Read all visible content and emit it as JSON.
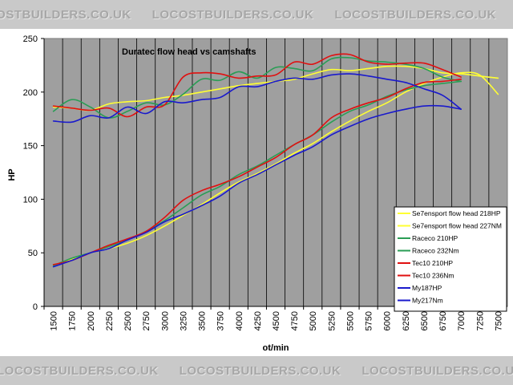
{
  "watermark": "LOCOSTBUILDERS.CO.UK",
  "chart_data": {
    "type": "line",
    "title": "Duratec  flow head vs camshafts",
    "xlabel": "ot/min",
    "ylabel": "HP",
    "ylim": [
      0,
      250
    ],
    "yticks": [
      0,
      50,
      100,
      150,
      200,
      250
    ],
    "xlim": [
      1500,
      7500
    ],
    "xticks": [
      1500,
      1750,
      2000,
      2250,
      2500,
      2750,
      3000,
      3250,
      3500,
      3750,
      4000,
      4250,
      4500,
      4750,
      5000,
      5250,
      5500,
      5750,
      6000,
      6250,
      6500,
      6750,
      7000,
      7250,
      7500
    ],
    "grid": "vertical",
    "legend_position": "right",
    "series": [
      {
        "name": "Se7ensport flow head 218HP",
        "color": "#ffff33",
        "x": [
          1500,
          1750,
          2000,
          2250,
          2500,
          2750,
          3000,
          3250,
          3500,
          3750,
          4000,
          4250,
          4500,
          4750,
          5000,
          5250,
          5500,
          5750,
          6000,
          6250,
          6500,
          6750,
          7000,
          7250,
          7500
        ],
        "values": [
          186,
          185,
          183,
          189,
          191,
          192,
          195,
          197,
          200,
          203,
          206,
          208,
          210,
          212,
          217,
          221,
          220,
          222,
          224,
          224,
          222,
          218,
          217,
          215,
          213
        ]
      },
      {
        "name": "Se7ensport flow head 227NM",
        "color": "#ffff33",
        "x": [
          1500,
          1750,
          2000,
          2250,
          2500,
          2750,
          3000,
          3250,
          3500,
          3750,
          4000,
          4250,
          4500,
          4750,
          5000,
          5250,
          5500,
          5750,
          6000,
          6250,
          6500,
          6750,
          7000,
          7250,
          7500
        ],
        "values": [
          38,
          44,
          50,
          54,
          59,
          66,
          75,
          85,
          95,
          106,
          116,
          124,
          133,
          143,
          152,
          163,
          173,
          182,
          190,
          200,
          208,
          214,
          218,
          216,
          198
        ]
      },
      {
        "name": "Raceco 210HP",
        "color": "#2a9d55",
        "x": [
          1500,
          1750,
          2000,
          2250,
          2500,
          2750,
          3000,
          3250,
          3500,
          3750,
          4000,
          4250,
          4500,
          4750,
          5000,
          5250,
          5500,
          5750,
          6000,
          6250,
          6500,
          6750,
          7000
        ],
        "values": [
          182,
          193,
          186,
          176,
          182,
          190,
          188,
          198,
          212,
          211,
          219,
          213,
          223,
          222,
          220,
          231,
          232,
          229,
          228,
          226,
          222,
          214,
          210
        ]
      },
      {
        "name": "Raceco 232Nm",
        "color": "#2a9d55",
        "x": [
          1500,
          1750,
          2000,
          2250,
          2500,
          2750,
          3000,
          3250,
          3500,
          3750,
          4000,
          4250,
          4500,
          4750,
          5000,
          5250,
          5500,
          5750,
          6000,
          6250,
          6500,
          6750,
          7000
        ],
        "values": [
          38,
          45,
          50,
          56,
          62,
          70,
          80,
          92,
          104,
          112,
          123,
          131,
          141,
          151,
          160,
          172,
          182,
          188,
          196,
          202,
          206,
          208,
          210
        ]
      },
      {
        "name": "Tec10 210HP",
        "color": "#e01010",
        "x": [
          1500,
          1750,
          2000,
          2250,
          2500,
          2750,
          3000,
          3250,
          3500,
          3750,
          4000,
          4250,
          4500,
          4750,
          5000,
          5250,
          5500,
          5750,
          6000,
          6250,
          6500,
          6750,
          7000
        ],
        "values": [
          187,
          185,
          183,
          185,
          177,
          186,
          188,
          214,
          218,
          217,
          213,
          215,
          216,
          228,
          226,
          234,
          235,
          228,
          226,
          227,
          227,
          221,
          214
        ]
      },
      {
        "name": "Tec10 236Nm",
        "color": "#e01010",
        "x": [
          1500,
          1750,
          2000,
          2250,
          2500,
          2750,
          3000,
          3250,
          3500,
          3750,
          4000,
          4250,
          4500,
          4750,
          5000,
          5250,
          5500,
          5750,
          6000,
          6250,
          6500,
          6750,
          7000
        ],
        "values": [
          39,
          43,
          50,
          57,
          63,
          70,
          83,
          99,
          108,
          114,
          121,
          130,
          139,
          151,
          160,
          176,
          184,
          190,
          195,
          203,
          209,
          210,
          212
        ]
      },
      {
        "name": "My187HP",
        "color": "#1a1acc",
        "x": [
          1500,
          1750,
          2000,
          2250,
          2500,
          2750,
          3000,
          3250,
          3500,
          3750,
          4000,
          4250,
          4500,
          4750,
          5000,
          5250,
          5500,
          5750,
          6000,
          6250,
          6500,
          6750,
          7000
        ],
        "values": [
          173,
          172,
          178,
          176,
          186,
          180,
          191,
          190,
          193,
          195,
          205,
          205,
          210,
          213,
          212,
          216,
          217,
          215,
          212,
          209,
          203,
          197,
          184
        ]
      },
      {
        "name": "My217Nm",
        "color": "#1a1acc",
        "x": [
          1500,
          1750,
          2000,
          2250,
          2500,
          2750,
          3000,
          3250,
          3500,
          3750,
          4000,
          4250,
          4500,
          4750,
          5000,
          5250,
          5500,
          5750,
          6000,
          6250,
          6500,
          6750,
          7000
        ],
        "values": [
          37,
          43,
          50,
          54,
          62,
          69,
          79,
          86,
          94,
          103,
          115,
          123,
          132,
          141,
          149,
          160,
          168,
          175,
          180,
          184,
          187,
          187,
          184
        ]
      }
    ]
  }
}
